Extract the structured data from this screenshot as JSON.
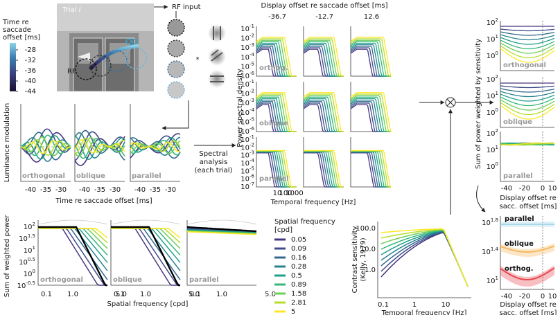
{
  "photo": {
    "title_prefix": "Trial ",
    "title_var": "i",
    "rf_label": "RF",
    "rf_input": "RF input",
    "convolve": "*"
  },
  "colorbar": {
    "label": [
      "Time re",
      "saccade",
      "offset [ms]"
    ],
    "ticks": [
      "-28",
      "-32",
      "-36",
      "-40",
      "-44"
    ]
  },
  "luminance": {
    "ylabel": "Luminance modulation",
    "xlabel": "Time re saccade offset [ms]",
    "panels": [
      "orthogonal",
      "oblique",
      "parallel"
    ],
    "xticks": [
      "-40",
      "-35",
      "-30"
    ]
  },
  "spectral_step": [
    "Spectral",
    "analysis",
    "(each trial)"
  ],
  "psd": {
    "title": "Display offset re saccade offset [ms]",
    "columns": [
      "-36.7",
      "-12.7",
      "12.6"
    ],
    "tick_base": "10",
    "rows": [
      {
        "label": "orthog.",
        "yticks": [
          "-1",
          "-2",
          "-3",
          "-4",
          "-5",
          "-6"
        ]
      },
      {
        "label": "oblique",
        "yticks": [
          "-1",
          "-2",
          "-3",
          "-4",
          "-5",
          "-6"
        ]
      },
      {
        "label": "parallel",
        "yticks": [
          "-1",
          "-2",
          "-3",
          "-4",
          "-5",
          "-6",
          "-7"
        ]
      }
    ],
    "ylabel": "Power spectral density",
    "xlabel": "Temporal frequency [Hz]",
    "xticks": [
      "10",
      "100",
      "1000"
    ]
  },
  "weighted_power": {
    "ylabel": "Sum of power weighted by sensitivity",
    "rows": [
      "orthogonal",
      "oblique",
      "parallel"
    ],
    "tick_base": "10",
    "yticks": [
      "2",
      "1",
      "0"
    ],
    "xticks": [
      "-40",
      "-20",
      "0",
      "10"
    ],
    "xlabel": [
      "Display offset re",
      "sacc. offset [ms]"
    ]
  },
  "spatial": {
    "ylabel": "Sum of weighted power",
    "tick_base": "10",
    "yticks": [
      "2",
      "1.5",
      "1",
      "0.5",
      "0",
      "-0.5"
    ],
    "xticks": [
      "0.1",
      "1.0",
      "5.0"
    ],
    "xlabel": "Spatial frequency [cpd]",
    "panels": [
      "orthogonal",
      "oblique",
      "parallel"
    ]
  },
  "legend": {
    "title": [
      "Spatial frequency",
      "[cpd]"
    ],
    "items": [
      {
        "label": "0.05",
        "color": "#46337e"
      },
      {
        "label": "0.09",
        "color": "#3e4a89"
      },
      {
        "label": "0.16",
        "color": "#31688e"
      },
      {
        "label": "0.28",
        "color": "#26828e"
      },
      {
        "label": "0.5",
        "color": "#1f9e89"
      },
      {
        "label": "0.89",
        "color": "#35b779"
      },
      {
        "label": "1.58",
        "color": "#6ece58"
      },
      {
        "label": "2.81",
        "color": "#b5de2b"
      },
      {
        "label": "5",
        "color": "#fde725"
      }
    ]
  },
  "kelly": {
    "ylabel": [
      "Contrast sensitivity",
      "(Kelly, 1979)"
    ],
    "yticks": [
      "100.0",
      "10.0",
      "1.0"
    ],
    "xticks": [
      "0.1",
      "1",
      "10"
    ],
    "xlabel": "Temporal frequency [Hz]"
  },
  "summary": {
    "tick_base": "10",
    "yticks": [
      "1.8",
      "1.4",
      "1"
    ],
    "labels": [
      {
        "text": "parallel",
        "color": "#a6d8ea"
      },
      {
        "text": "oblique",
        "color": "#f5b860"
      },
      {
        "text": "orthog.",
        "color": "#e8474f"
      }
    ],
    "xticks": [
      "-40",
      "-20",
      "0",
      "10"
    ],
    "xlabel": [
      "Display offset re",
      "sacc. offset [ms]"
    ]
  }
}
